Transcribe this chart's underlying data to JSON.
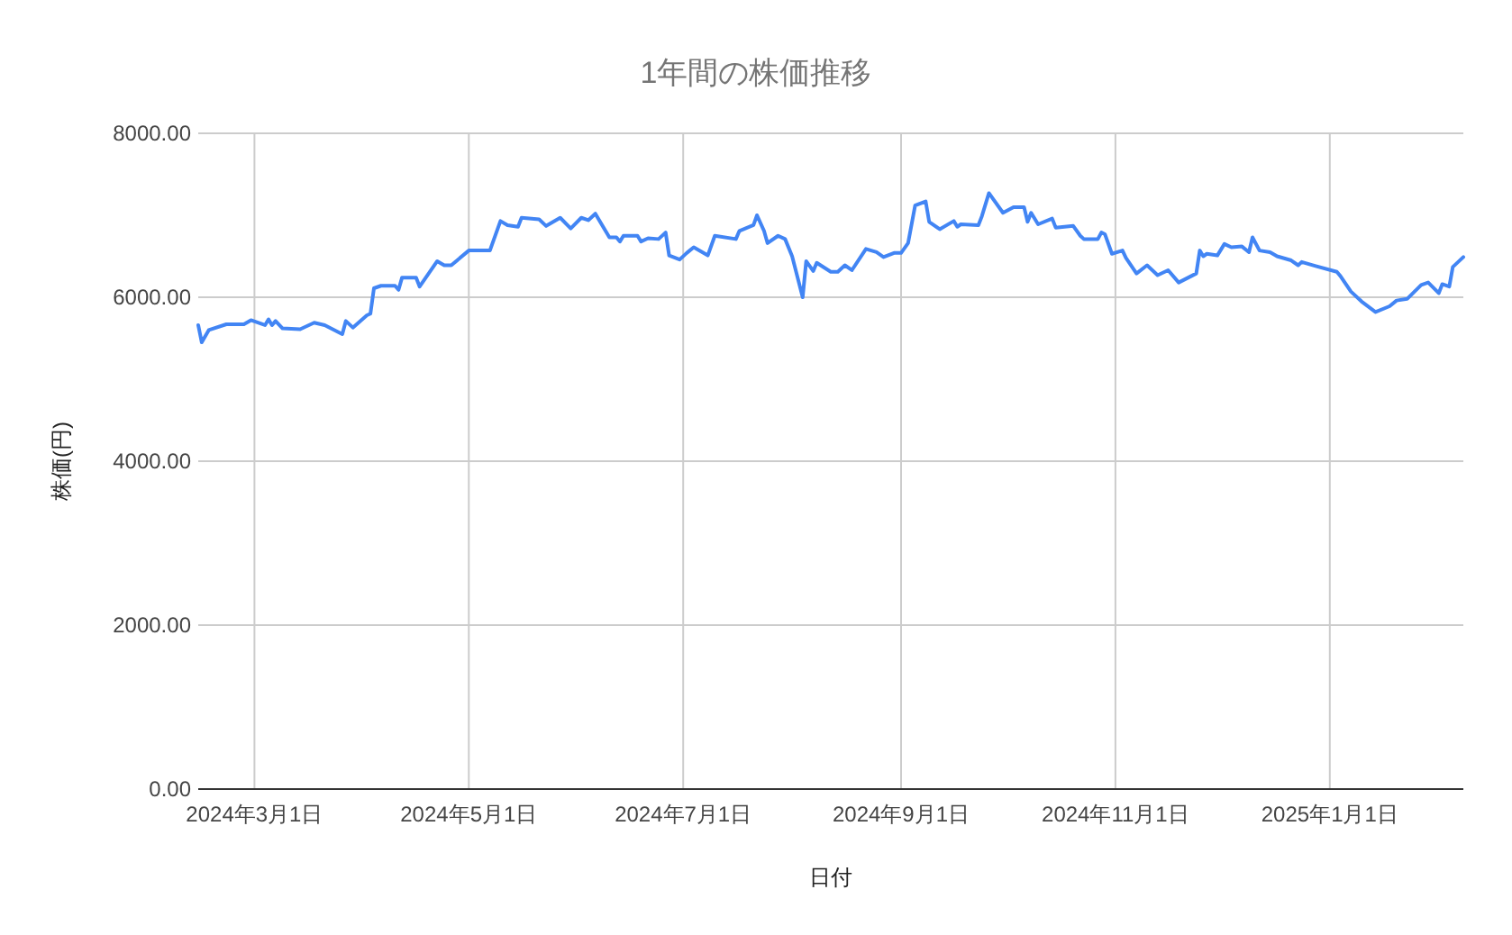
{
  "chart_data": {
    "type": "line",
    "title": "1年間の株価推移",
    "xlabel": "日付",
    "ylabel": "株価(円)",
    "grid": true,
    "xlim": [
      "2024-02-14",
      "2025-02-08"
    ],
    "xticks": [
      {
        "value": "2024-03-01",
        "label": "2024年3月1日"
      },
      {
        "value": "2024-05-01",
        "label": "2024年5月1日"
      },
      {
        "value": "2024-07-01",
        "label": "2024年7月1日"
      },
      {
        "value": "2024-09-01",
        "label": "2024年9月1日"
      },
      {
        "value": "2024-11-01",
        "label": "2024年11月1日"
      },
      {
        "value": "2025-01-01",
        "label": "2025年1月1日"
      }
    ],
    "ylim": [
      0,
      8000
    ],
    "yticks": [
      {
        "value": 0,
        "label": "0.00"
      },
      {
        "value": 2000,
        "label": "2000.00"
      },
      {
        "value": 4000,
        "label": "4000.00"
      },
      {
        "value": 6000,
        "label": "6000.00"
      },
      {
        "value": 8000,
        "label": "8000.00"
      }
    ],
    "x": [
      "2024-02-14",
      "2024-02-15",
      "2024-02-17",
      "2024-02-22",
      "2024-02-27",
      "2024-02-29",
      "2024-03-04",
      "2024-03-05",
      "2024-03-06",
      "2024-03-07",
      "2024-03-09",
      "2024-03-14",
      "2024-03-18",
      "2024-03-21",
      "2024-03-26",
      "2024-03-27",
      "2024-03-29",
      "2024-04-02",
      "2024-04-03",
      "2024-04-04",
      "2024-04-06",
      "2024-04-10",
      "2024-04-11",
      "2024-04-12",
      "2024-04-16",
      "2024-04-17",
      "2024-04-22",
      "2024-04-24",
      "2024-04-26",
      "2024-05-01",
      "2024-05-07",
      "2024-05-10",
      "2024-05-12",
      "2024-05-15",
      "2024-05-16",
      "2024-05-21",
      "2024-05-23",
      "2024-05-27",
      "2024-05-30",
      "2024-06-02",
      "2024-06-04",
      "2024-06-06",
      "2024-06-10",
      "2024-06-12",
      "2024-06-13",
      "2024-06-14",
      "2024-06-18",
      "2024-06-19",
      "2024-06-21",
      "2024-06-24",
      "2024-06-26",
      "2024-06-27",
      "2024-06-30",
      "2024-07-02",
      "2024-07-04",
      "2024-07-08",
      "2024-07-10",
      "2024-07-16",
      "2024-07-17",
      "2024-07-21",
      "2024-07-22",
      "2024-07-24",
      "2024-07-25",
      "2024-07-28",
      "2024-07-30",
      "2024-08-01",
      "2024-08-04",
      "2024-08-05",
      "2024-08-07",
      "2024-08-08",
      "2024-08-12",
      "2024-08-14",
      "2024-08-16",
      "2024-08-18",
      "2024-08-22",
      "2024-08-25",
      "2024-08-27",
      "2024-08-30",
      "2024-09-01",
      "2024-09-03",
      "2024-09-05",
      "2024-09-08",
      "2024-09-09",
      "2024-09-12",
      "2024-09-16",
      "2024-09-17",
      "2024-09-18",
      "2024-09-23",
      "2024-09-24",
      "2024-09-26",
      "2024-09-30",
      "2024-10-03",
      "2024-10-06",
      "2024-10-07",
      "2024-10-08",
      "2024-10-10",
      "2024-10-14",
      "2024-10-15",
      "2024-10-20",
      "2024-10-22",
      "2024-10-23",
      "2024-10-27",
      "2024-10-28",
      "2024-10-29",
      "2024-10-31",
      "2024-11-03",
      "2024-11-04",
      "2024-11-07",
      "2024-11-10",
      "2024-11-13",
      "2024-11-16",
      "2024-11-19",
      "2024-11-24",
      "2024-11-25",
      "2024-11-26",
      "2024-11-27",
      "2024-11-30",
      "2024-12-02",
      "2024-12-04",
      "2024-12-07",
      "2024-12-09",
      "2024-12-10",
      "2024-12-12",
      "2024-12-15",
      "2024-12-17",
      "2024-12-21",
      "2024-12-23",
      "2024-12-24",
      "2024-12-28",
      "2025-01-03",
      "2025-01-04",
      "2025-01-07",
      "2025-01-10",
      "2025-01-14",
      "2025-01-18",
      "2025-01-20",
      "2025-01-23",
      "2025-01-27",
      "2025-01-29",
      "2025-02-01",
      "2025-02-02",
      "2025-02-04",
      "2025-02-05",
      "2025-02-08"
    ],
    "series": [
      {
        "color": "#4285f4",
        "values": [
          5660,
          5450,
          5600,
          5670,
          5670,
          5720,
          5660,
          5730,
          5660,
          5710,
          5620,
          5610,
          5690,
          5660,
          5550,
          5710,
          5630,
          5780,
          5800,
          6110,
          6140,
          6140,
          6090,
          6240,
          6240,
          6130,
          6440,
          6390,
          6390,
          6570,
          6570,
          6930,
          6880,
          6860,
          6970,
          6950,
          6870,
          6970,
          6840,
          6970,
          6940,
          7020,
          6730,
          6730,
          6680,
          6750,
          6750,
          6680,
          6720,
          6710,
          6790,
          6510,
          6460,
          6540,
          6610,
          6510,
          6750,
          6710,
          6810,
          6880,
          7000,
          6810,
          6660,
          6750,
          6710,
          6500,
          6000,
          6440,
          6320,
          6420,
          6310,
          6310,
          6390,
          6330,
          6590,
          6550,
          6490,
          6540,
          6540,
          6660,
          7120,
          7170,
          6920,
          6830,
          6930,
          6860,
          6890,
          6880,
          6990,
          7270,
          7030,
          7100,
          7100,
          6920,
          7030,
          6890,
          6960,
          6850,
          6870,
          6750,
          6710,
          6710,
          6790,
          6770,
          6530,
          6570,
          6480,
          6290,
          6390,
          6270,
          6330,
          6180,
          6290,
          6570,
          6500,
          6530,
          6510,
          6650,
          6610,
          6620,
          6550,
          6730,
          6570,
          6550,
          6500,
          6450,
          6390,
          6430,
          6380,
          6310,
          6260,
          6070,
          5950,
          5820,
          5890,
          5960,
          5980,
          6150,
          6180,
          6050,
          6160,
          6130,
          6370,
          6490
        ]
      }
    ]
  }
}
